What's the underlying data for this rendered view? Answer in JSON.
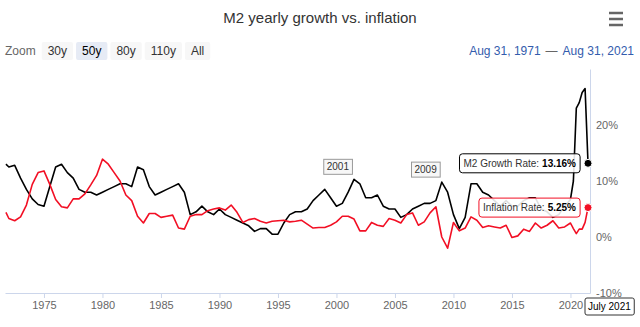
{
  "chart_data": {
    "type": "line",
    "title": "M2 yearly growth vs. inflation",
    "range_selector": {
      "label": "Zoom",
      "buttons": [
        "30y",
        "50y",
        "80y",
        "110y",
        "All"
      ],
      "selected": "50y"
    },
    "date_range": {
      "from": "Aug 31, 1971",
      "separator": "—",
      "to": "Aug 31, 2021"
    },
    "x": [
      1971.75,
      1972,
      1972.5,
      1973,
      1973.5,
      1974,
      1974.5,
      1975,
      1975.5,
      1976,
      1976.5,
      1977,
      1977.5,
      1978,
      1978.5,
      1979,
      1979.5,
      1980,
      1980.5,
      1981,
      1981.5,
      1982,
      1982.5,
      1983,
      1983.5,
      1984,
      1984.5,
      1985,
      1985.5,
      1986,
      1986.5,
      1987,
      1987.5,
      1988,
      1988.5,
      1989,
      1989.5,
      1990,
      1990.5,
      1991,
      1991.5,
      1992,
      1992.5,
      1993,
      1993.5,
      1994,
      1994.5,
      1995,
      1995.5,
      1996,
      1996.5,
      1997,
      1997.5,
      1998,
      1998.5,
      1999,
      1999.5,
      2000,
      2000.5,
      2001,
      2001.5,
      2002,
      2002.5,
      2003,
      2003.5,
      2004,
      2004.5,
      2005,
      2005.5,
      2006,
      2006.5,
      2007,
      2007.5,
      2008,
      2008.5,
      2009,
      2009.5,
      2010,
      2010.5,
      2011,
      2011.5,
      2012,
      2012.5,
      2013,
      2013.5,
      2014,
      2014.5,
      2015,
      2015.5,
      2016,
      2016.5,
      2017,
      2017.5,
      2018,
      2018.5,
      2019,
      2019.5,
      2020,
      2020.25,
      2020.5,
      2020.75,
      2021,
      2021.25,
      2021.5
    ],
    "series": [
      {
        "color": "#000000",
        "values": [
          13.0,
          12.5,
          12.8,
          10.5,
          8.5,
          6.8,
          5.8,
          5.5,
          9.0,
          12.5,
          13.0,
          11.5,
          10.5,
          8.5,
          8.0,
          8.0,
          7.5,
          8.0,
          8.5,
          9.0,
          9.5,
          9.5,
          9.0,
          12.5,
          12.0,
          9.0,
          7.5,
          8.0,
          8.5,
          9.0,
          9.5,
          8.0,
          4.0,
          4.5,
          5.5,
          4.5,
          4.0,
          5.0,
          4.0,
          3.5,
          3.0,
          2.5,
          2.0,
          1.0,
          1.5,
          1.5,
          0.5,
          0.5,
          2.5,
          4.0,
          4.5,
          4.5,
          5.0,
          6.5,
          7.5,
          8.5,
          7.0,
          5.5,
          6.0,
          8.0,
          10.3,
          9.5,
          7.0,
          7.0,
          7.5,
          5.5,
          5.0,
          5.0,
          3.5,
          4.0,
          5.0,
          5.5,
          6.0,
          6.0,
          6.5,
          9.8,
          8.0,
          4.0,
          1.5,
          3.5,
          9.5,
          9.5,
          8.0,
          7.5,
          6.5,
          5.5,
          6.5,
          5.5,
          5.5,
          6.5,
          7.0,
          7.0,
          5.0,
          4.5,
          3.5,
          4.0,
          5.5,
          6.7,
          10.0,
          23.0,
          24.0,
          25.8,
          26.5,
          13.16
        ]
      },
      {
        "color": "#f20f24",
        "values": [
          4.4,
          3.3,
          2.9,
          3.6,
          5.7,
          9.4,
          11.5,
          11.8,
          9.4,
          6.7,
          5.4,
          5.2,
          6.8,
          6.8,
          7.7,
          9.3,
          11.0,
          13.9,
          13.0,
          11.5,
          10.0,
          7.5,
          6.5,
          3.7,
          2.5,
          4.2,
          4.2,
          3.5,
          3.7,
          3.9,
          1.6,
          1.4,
          3.7,
          4.0,
          4.0,
          4.7,
          5.0,
          5.2,
          4.8,
          5.7,
          4.4,
          2.6,
          3.1,
          3.3,
          2.8,
          2.5,
          2.8,
          2.9,
          3.0,
          2.7,
          2.8,
          3.0,
          2.3,
          1.6,
          1.7,
          1.7,
          2.1,
          2.7,
          3.7,
          3.7,
          3.2,
          1.1,
          1.1,
          2.6,
          2.1,
          1.9,
          3.3,
          3.0,
          2.5,
          4.0,
          4.3,
          2.1,
          2.7,
          4.3,
          5.4,
          0.0,
          -2.0,
          2.6,
          1.1,
          1.6,
          3.6,
          3.0,
          1.7,
          2.0,
          1.8,
          1.6,
          2.1,
          -0.1,
          0.2,
          1.4,
          1.0,
          2.5,
          1.6,
          2.1,
          2.9,
          1.6,
          1.8,
          2.5,
          1.5,
          0.6,
          1.4,
          1.4,
          2.6,
          5.25
        ]
      }
    ],
    "xlim": [
      1971.67,
      2021.67
    ],
    "xticks": [
      1975,
      1980,
      1985,
      1990,
      1995,
      2000,
      2005,
      2010,
      2015,
      2020
    ],
    "ylim": [
      -10,
      30
    ],
    "yticks": [
      {
        "value": -10,
        "label": "-10%"
      },
      {
        "value": 0,
        "label": "0%"
      },
      {
        "value": 10,
        "label": "10%"
      },
      {
        "value": 20,
        "label": "20%"
      }
    ],
    "grid": false,
    "annotations": [
      {
        "text": "2001",
        "x": 2001.5,
        "y": 10.3
      },
      {
        "text": "2009",
        "x": 2009,
        "y": 9.8
      }
    ],
    "tooltip": {
      "x": 2021.5,
      "label": "July 2021",
      "items": [
        {
          "label": "M2 Growth Rate:",
          "value": 13.16,
          "value_label": "13.16%"
        },
        {
          "label": "Inflation Rate:",
          "value": 5.25,
          "value_label": "5.25%"
        }
      ]
    }
  }
}
